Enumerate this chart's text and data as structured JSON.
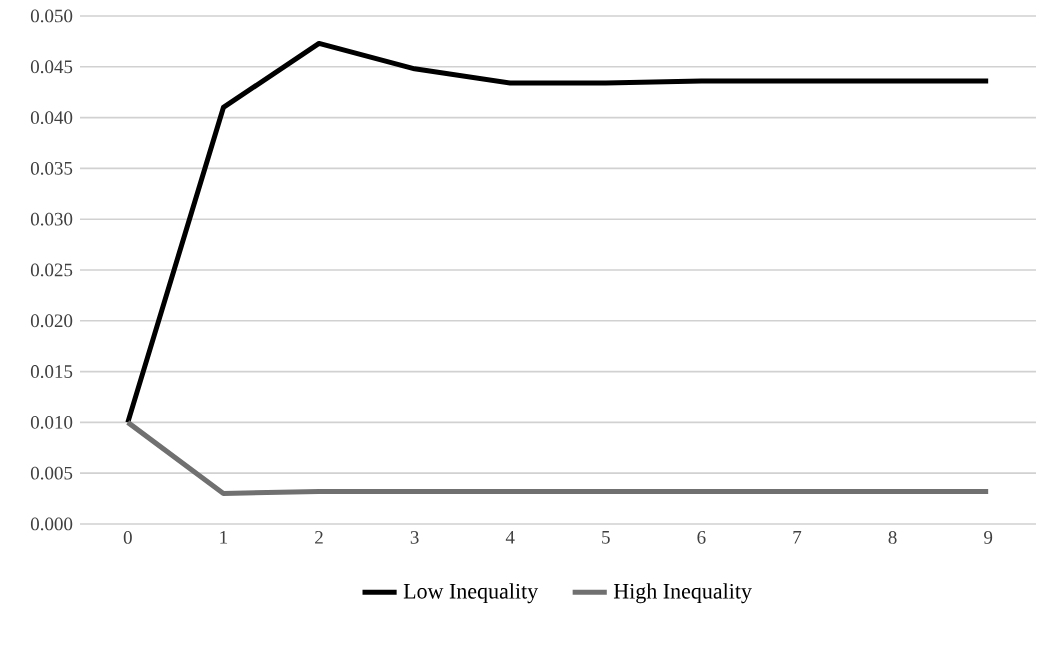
{
  "chart_data": {
    "type": "line",
    "categories": [
      "0",
      "1",
      "2",
      "3",
      "4",
      "5",
      "6",
      "7",
      "8",
      "9"
    ],
    "series": [
      {
        "name": "Low Inequality",
        "color": "#000000",
        "values": [
          0.01,
          0.041,
          0.0473,
          0.0448,
          0.0434,
          0.0434,
          0.0436,
          0.0436,
          0.0436,
          0.0436
        ]
      },
      {
        "name": "High Inequality",
        "color": "#707070",
        "values": [
          0.01,
          0.003,
          0.0032,
          0.0032,
          0.0032,
          0.0032,
          0.0032,
          0.0032,
          0.0032,
          0.0032
        ]
      }
    ],
    "ylim": [
      0,
      0.05
    ],
    "yticks": [
      {
        "value": 0,
        "label": "0.000"
      },
      {
        "value": 0.005,
        "label": "0.005"
      },
      {
        "value": 0.01,
        "label": "0.010"
      },
      {
        "value": 0.015,
        "label": "0.015"
      },
      {
        "value": 0.02,
        "label": "0.020"
      },
      {
        "value": 0.025,
        "label": "0.025"
      },
      {
        "value": 0.03,
        "label": "0.030"
      },
      {
        "value": 0.035,
        "label": "0.035"
      },
      {
        "value": 0.04,
        "label": "0.040"
      },
      {
        "value": 0.045,
        "label": "0.045"
      },
      {
        "value": 0.05,
        "label": "0.050"
      }
    ],
    "grid": "y",
    "legend": "bottom"
  }
}
